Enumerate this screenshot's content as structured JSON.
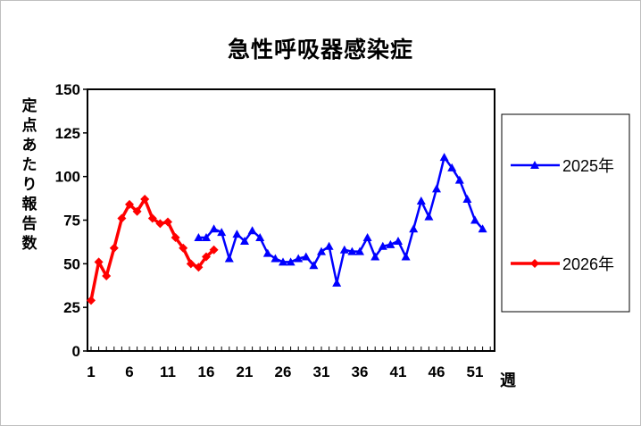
{
  "chart_data": {
    "type": "line",
    "title": "急性呼吸器感染症",
    "ylabel": "定点あたり報告数",
    "xlabel": "週",
    "ylim": [
      0,
      150
    ],
    "yticks": [
      0,
      25,
      50,
      75,
      100,
      125,
      150
    ],
    "xlim": [
      1,
      53
    ],
    "xticks": [
      1,
      6,
      11,
      16,
      21,
      26,
      31,
      36,
      41,
      46,
      51
    ],
    "grid": false,
    "legend_position": "right",
    "series": [
      {
        "name": "2025年",
        "color": "#0000ff",
        "marker": "triangle",
        "x": [
          15,
          16,
          17,
          18,
          19,
          20,
          21,
          22,
          23,
          24,
          25,
          26,
          27,
          28,
          29,
          30,
          31,
          32,
          33,
          34,
          35,
          36,
          37,
          38,
          39,
          40,
          41,
          42,
          43,
          44,
          45,
          46,
          47,
          48,
          49,
          50,
          51,
          52
        ],
        "values": [
          65,
          65,
          70,
          68,
          53,
          67,
          63,
          69,
          65,
          56,
          53,
          51,
          51,
          53,
          54,
          49,
          57,
          60,
          39,
          58,
          57,
          57,
          65,
          54,
          60,
          61,
          63,
          54,
          70,
          86,
          77,
          93,
          111,
          105,
          98,
          87,
          75,
          70
        ]
      },
      {
        "name": "2026年",
        "color": "#ff0000",
        "marker": "diamond",
        "x": [
          1,
          2,
          3,
          4,
          5,
          6,
          7,
          8,
          9,
          10,
          11,
          12,
          13,
          14,
          15,
          16,
          17
        ],
        "values": [
          29,
          51,
          43,
          59,
          76,
          84,
          80,
          87,
          76,
          73,
          74,
          65,
          59,
          50,
          48,
          54,
          58
        ]
      }
    ]
  }
}
